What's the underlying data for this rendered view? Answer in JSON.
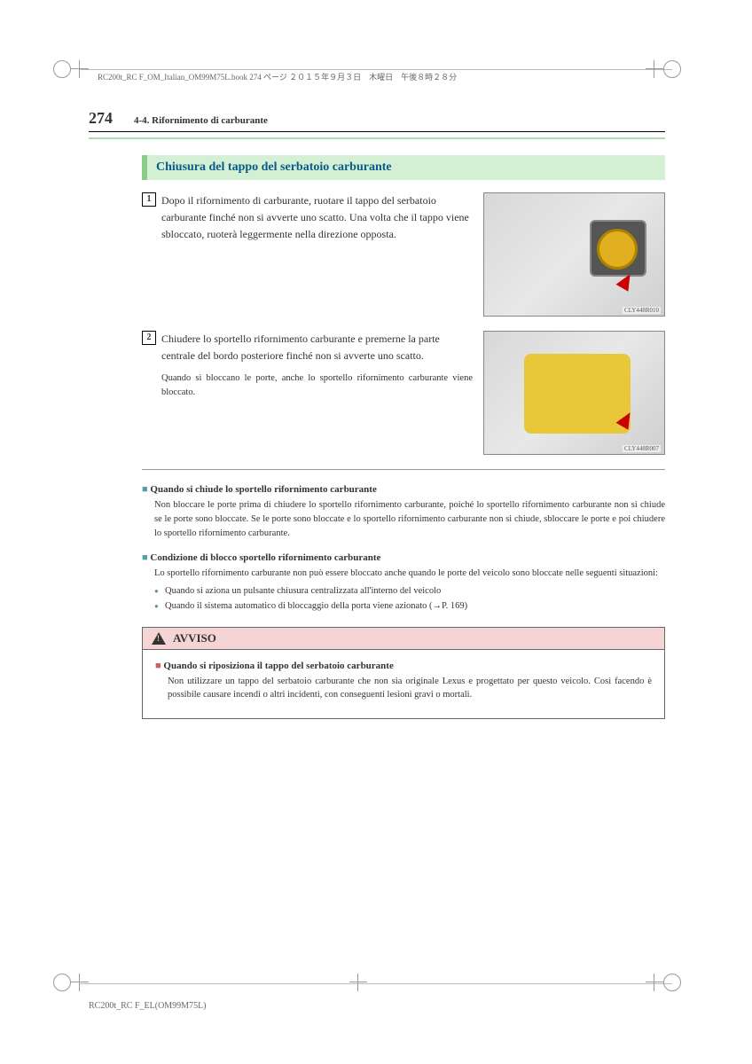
{
  "print_header": "RC200t_RC F_OM_Italian_OM99M75L.book  274 ページ  ２０１５年９月３日　木曜日　午後８時２８分",
  "page_number": "274",
  "section_ref": "4-4. Rifornimento di carburante",
  "heading": "Chiusura del tappo del serbatoio carburante",
  "steps": [
    {
      "num": "1",
      "text": "Dopo il rifornimento di carburante, ruotare il tappo del serbatoio carburante finché non si avverte uno scatto. Una volta che il tappo viene sbloccato, ruoterà leggermente nella direzione opposta.",
      "img_label": "CLY448R010",
      "sub": ""
    },
    {
      "num": "2",
      "text": "Chiudere lo sportello rifornimento carburante e premerne la parte centrale del bordo posteriore finché non si avverte uno scatto.",
      "sub": "Quando si bloccano le porte, anche lo sportello rifornimento carburante viene bloccato.",
      "img_label": "CLY448R007"
    }
  ],
  "notes": [
    {
      "title": "Quando si chiude lo sportello rifornimento carburante",
      "body": "Non bloccare le porte prima di chiudere lo sportello rifornimento carburante, poiché lo sportello rifornimento carburante non si chiude se le porte sono bloccate. Se le porte sono bloccate e lo sportello rifornimento carburante non si chiude, sbloccare le porte e poi chiudere lo sportello rifornimento carburante."
    },
    {
      "title": "Condizione di blocco sportello rifornimento carburante",
      "body": "Lo sportello rifornimento carburante non può essere bloccato anche quando le porte del veicolo sono bloccate nelle seguenti situazioni:",
      "bullets": [
        "Quando si aziona un pulsante chiusura centralizzata all'interno del veicolo",
        "Quando il sistema automatico di bloccaggio della porta viene azionato (→P. 169)"
      ]
    }
  ],
  "avviso": {
    "label": "AVVISO",
    "title": "Quando si riposiziona il tappo del serbatoio carburante",
    "text": "Non utilizzare un tappo del serbatoio carburante che non sia originale Lexus e progettato per questo veicolo. Così facendo è possibile causare incendi o altri incidenti, con conseguenti lesioni gravi o mortali."
  },
  "footer_code": "RC200t_RC F_EL(OM99M75L)",
  "colors": {
    "heading_bg": "#d4f0d4",
    "heading_border": "#88cc88",
    "heading_text": "#0a5a8a",
    "note_marker": "#5aa0a0",
    "avviso_bg": "#f4d4d4",
    "avviso_marker": "#cc6060"
  }
}
